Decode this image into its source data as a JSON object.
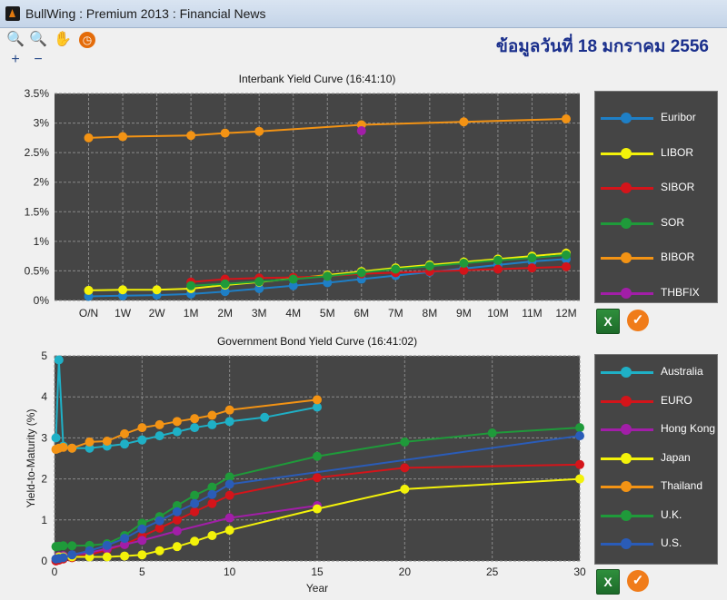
{
  "window": {
    "title": "BullWing : Premium 2013 : Financial News"
  },
  "toolbar": {
    "zoom_in": "🔍+",
    "zoom_out": "🔍−",
    "pan": "✋",
    "history": "◷",
    "date_label": "ข้อมูลวันที่ 18 มกราคม 2556"
  },
  "colors": {
    "Euribor": "#1e7fc6",
    "LIBOR": "#f3f20a",
    "SIBOR": "#d4141a",
    "SOR": "#1f9a3a",
    "BIBOR": "#f39314",
    "THBFIX": "#a21ea8",
    "Australia": "#1fb0c6",
    "EURO": "#d4141a",
    "Hong Kong": "#a21ea8",
    "Japan": "#f3f20a",
    "Thailand": "#f39314",
    "U.K.": "#1f9a3a",
    "U.S.": "#2a5cb8"
  },
  "chart_data": [
    {
      "type": "line",
      "title": "Interbank Yield Curve (16:41:10)",
      "categories": [
        "O/N",
        "1W",
        "2W",
        "1M",
        "2M",
        "3M",
        "4M",
        "5M",
        "6M",
        "7M",
        "8M",
        "9M",
        "10M",
        "11M",
        "12M"
      ],
      "y_ticks": [
        "0%",
        "0.5%",
        "1%",
        "1.5%",
        "2%",
        "2.5%",
        "3%",
        "3.5%"
      ],
      "ylim": [
        0,
        3.5
      ],
      "grid": true,
      "legend": "right",
      "series": [
        {
          "name": "Euribor",
          "values": [
            0.07,
            0.08,
            0.09,
            0.11,
            0.15,
            0.2,
            0.25,
            0.3,
            0.36,
            0.42,
            0.48,
            0.54,
            0.6,
            0.66,
            0.7
          ]
        },
        {
          "name": "LIBOR",
          "values": [
            0.17,
            0.18,
            0.18,
            0.2,
            0.26,
            0.31,
            0.37,
            0.43,
            0.49,
            0.55,
            0.6,
            0.65,
            0.7,
            0.75,
            0.8
          ]
        },
        {
          "name": "SIBOR",
          "values": [
            null,
            null,
            null,
            0.31,
            0.36,
            0.38,
            0.39,
            0.41,
            0.45,
            0.47,
            0.49,
            0.51,
            0.53,
            0.55,
            0.57
          ]
        },
        {
          "name": "SOR",
          "values": [
            null,
            null,
            null,
            0.25,
            0.28,
            0.32,
            0.36,
            0.41,
            0.47,
            0.53,
            0.58,
            0.63,
            0.68,
            0.72,
            0.77
          ]
        },
        {
          "name": "BIBOR",
          "values": [
            2.75,
            2.77,
            null,
            2.79,
            2.83,
            2.86,
            null,
            null,
            2.97,
            null,
            null,
            3.02,
            null,
            null,
            3.07
          ]
        },
        {
          "name": "THBFIX",
          "values": [
            null,
            null,
            null,
            null,
            null,
            null,
            null,
            null,
            2.87,
            null,
            null,
            null,
            null,
            null,
            null
          ]
        }
      ]
    },
    {
      "type": "line",
      "title": "Government Bond Yield Curve (16:41:02)",
      "xlabel": "Year",
      "ylabel": "Yield-to-Maturity (%)",
      "x_ticks": [
        0,
        5,
        10,
        15,
        20,
        25,
        30
      ],
      "y_ticks": [
        0,
        1,
        2,
        3,
        4,
        5
      ],
      "xlim": [
        0,
        30
      ],
      "ylim": [
        0,
        5
      ],
      "grid": true,
      "legend": "right",
      "series": [
        {
          "name": "Australia",
          "x": [
            0.08,
            0.25,
            0.5,
            1,
            2,
            3,
            4,
            5,
            6,
            7,
            8,
            9,
            10,
            12,
            15
          ],
          "y": [
            3.0,
            4.9,
            2.8,
            2.75,
            2.75,
            2.8,
            2.85,
            2.95,
            3.05,
            3.15,
            3.25,
            3.32,
            3.4,
            3.5,
            3.75
          ]
        },
        {
          "name": "EURO",
          "x": [
            0.08,
            0.25,
            0.5,
            1,
            2,
            3,
            4,
            5,
            6,
            7,
            8,
            9,
            10,
            15,
            20,
            30
          ],
          "y": [
            0.0,
            0.02,
            0.05,
            0.08,
            0.15,
            0.27,
            0.4,
            0.6,
            0.8,
            1.0,
            1.2,
            1.4,
            1.6,
            2.03,
            2.27,
            2.35
          ]
        },
        {
          "name": "Hong Kong",
          "x": [
            0.25,
            0.5,
            1,
            2,
            3,
            4,
            5,
            7,
            10,
            15
          ],
          "y": [
            0.12,
            0.13,
            0.15,
            0.2,
            0.3,
            0.4,
            0.5,
            0.73,
            1.05,
            1.35
          ]
        },
        {
          "name": "Japan",
          "x": [
            0.25,
            0.5,
            1,
            2,
            3,
            4,
            5,
            6,
            7,
            8,
            9,
            10,
            15,
            20,
            30
          ],
          "y": [
            0.1,
            0.1,
            0.1,
            0.1,
            0.1,
            0.12,
            0.15,
            0.25,
            0.35,
            0.48,
            0.62,
            0.75,
            1.27,
            1.75,
            2.0
          ]
        },
        {
          "name": "Thailand",
          "x": [
            0.08,
            0.25,
            0.5,
            1,
            2,
            3,
            4,
            5,
            6,
            7,
            8,
            9,
            10,
            15
          ],
          "y": [
            2.72,
            2.75,
            2.77,
            2.75,
            2.9,
            2.92,
            3.1,
            3.25,
            3.32,
            3.4,
            3.47,
            3.55,
            3.68,
            3.93
          ]
        },
        {
          "name": "U.K.",
          "x": [
            0.08,
            0.25,
            0.5,
            1,
            2,
            3,
            4,
            5,
            6,
            7,
            8,
            9,
            10,
            15,
            20,
            25,
            30
          ],
          "y": [
            0.35,
            0.36,
            0.37,
            0.37,
            0.38,
            0.42,
            0.62,
            0.92,
            1.08,
            1.35,
            1.6,
            1.8,
            2.05,
            2.55,
            2.9,
            3.12,
            3.25
          ]
        },
        {
          "name": "U.S.",
          "x": [
            0.08,
            0.25,
            0.5,
            1,
            2,
            3,
            4,
            5,
            6,
            7,
            8,
            9,
            10,
            30
          ],
          "y": [
            0.05,
            0.06,
            0.08,
            0.15,
            0.25,
            0.38,
            0.55,
            0.78,
            0.98,
            1.2,
            1.4,
            1.62,
            1.87,
            3.05
          ]
        }
      ]
    }
  ],
  "actions": {
    "excel_label": "X",
    "ok_label": "✓"
  }
}
